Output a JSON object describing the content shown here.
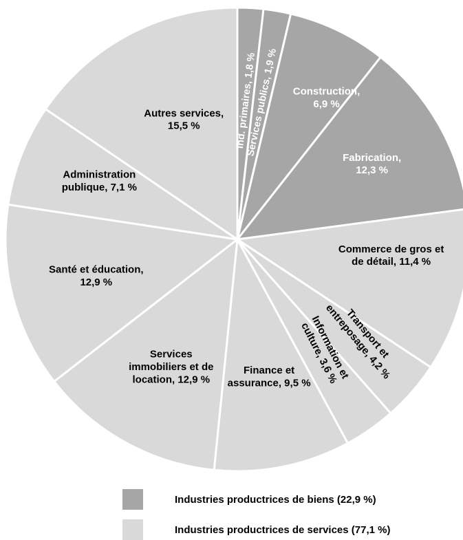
{
  "chart_data": {
    "type": "pie",
    "title": "",
    "slices": [
      {
        "label": [
          "Ind. primaires, 1,8 %"
        ],
        "value": 1.8,
        "group": "goods"
      },
      {
        "label": [
          "Services publics, 1,9 %"
        ],
        "value": 1.9,
        "group": "goods"
      },
      {
        "label": [
          "Construction,",
          "6,9 %"
        ],
        "value": 6.9,
        "group": "goods"
      },
      {
        "label": [
          "Fabrication,",
          "12,3 %"
        ],
        "value": 12.3,
        "group": "goods"
      },
      {
        "label": [
          "Commerce de gros et",
          "de détail, 11,4 %"
        ],
        "value": 11.4,
        "group": "services"
      },
      {
        "label": [
          "Transport et",
          "entreposage, 4,2 %"
        ],
        "value": 4.2,
        "group": "services"
      },
      {
        "label": [
          "Information et",
          "culture, 3,6 %"
        ],
        "value": 3.6,
        "group": "services"
      },
      {
        "label": [
          "Finance et",
          "assurance, 9,5 %"
        ],
        "value": 9.5,
        "group": "services"
      },
      {
        "label": [
          "Services",
          "immobiliers et de",
          "location, 12,9 %"
        ],
        "value": 12.9,
        "group": "services"
      },
      {
        "label": [
          "Santé et éducation,",
          "12,9 %"
        ],
        "value": 12.9,
        "group": "services"
      },
      {
        "label": [
          "Administration",
          "publique, 7,1 %"
        ],
        "value": 7.1,
        "group": "services"
      },
      {
        "label": [
          "Autres services,",
          "15,5 %"
        ],
        "value": 15.5,
        "group": "services"
      }
    ],
    "legend": [
      {
        "label": "Industries productrices de biens (22,9 %)",
        "color": "#a6a6a6",
        "group": "goods"
      },
      {
        "label": "Industries productrices de services (77,1 %)",
        "color": "#d9d9d9",
        "group": "services"
      }
    ],
    "legend_position": "bottom"
  }
}
